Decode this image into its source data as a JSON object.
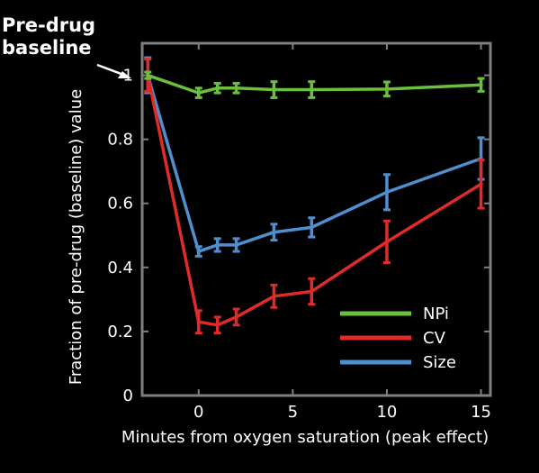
{
  "chart_data": {
    "type": "line",
    "title": "",
    "xlabel": "Minutes from oxygen saturation (peak effect)",
    "ylabel": "Fraction of pre-drug (baseline) value",
    "xlim": [
      -3,
      15.5
    ],
    "ylim": [
      0,
      1.1
    ],
    "xticks": [
      0,
      5,
      10,
      15
    ],
    "yticks": [
      0,
      0.2,
      0.4,
      0.6,
      0.8,
      1
    ],
    "ytick_labels": [
      "0",
      "0.2",
      "0.4",
      "0.6",
      "0.8",
      "1"
    ],
    "grid": false,
    "legend": "bottom-right",
    "annotation": {
      "line1": "Pre-drug",
      "line2": "baseline",
      "points_to": [
        -3,
        1.0
      ]
    },
    "series": [
      {
        "name": "NPi",
        "color": "#6abf3c",
        "points": [
          {
            "x": -2.7,
            "y": 1.0,
            "err": 0.01
          },
          {
            "x": 0.0,
            "y": 0.945,
            "err": 0.015
          },
          {
            "x": 1.0,
            "y": 0.96,
            "err": 0.015
          },
          {
            "x": 2.0,
            "y": 0.96,
            "err": 0.015
          },
          {
            "x": 4.0,
            "y": 0.955,
            "err": 0.025
          },
          {
            "x": 6.0,
            "y": 0.955,
            "err": 0.025
          },
          {
            "x": 10.0,
            "y": 0.957,
            "err": 0.022
          },
          {
            "x": 15.0,
            "y": 0.97,
            "err": 0.02
          }
        ]
      },
      {
        "name": "CV",
        "color": "#e02b2b",
        "points": [
          {
            "x": -2.7,
            "y": 1.0,
            "err": 0.05
          },
          {
            "x": 0.0,
            "y": 0.23,
            "err": 0.035
          },
          {
            "x": 1.0,
            "y": 0.22,
            "err": 0.025
          },
          {
            "x": 2.0,
            "y": 0.245,
            "err": 0.025
          },
          {
            "x": 4.0,
            "y": 0.31,
            "err": 0.035
          },
          {
            "x": 6.0,
            "y": 0.325,
            "err": 0.04
          },
          {
            "x": 10.0,
            "y": 0.48,
            "err": 0.065
          },
          {
            "x": 15.0,
            "y": 0.66,
            "err": 0.075
          }
        ]
      },
      {
        "name": "Size",
        "color": "#4f8fcf",
        "points": [
          {
            "x": -2.7,
            "y": 1.0,
            "err": 0.055
          },
          {
            "x": 0.0,
            "y": 0.45,
            "err": 0.015
          },
          {
            "x": 1.0,
            "y": 0.47,
            "err": 0.02
          },
          {
            "x": 2.0,
            "y": 0.47,
            "err": 0.02
          },
          {
            "x": 4.0,
            "y": 0.51,
            "err": 0.025
          },
          {
            "x": 6.0,
            "y": 0.525,
            "err": 0.03
          },
          {
            "x": 10.0,
            "y": 0.635,
            "err": 0.055
          },
          {
            "x": 15.0,
            "y": 0.74,
            "err": 0.065
          }
        ]
      }
    ]
  }
}
